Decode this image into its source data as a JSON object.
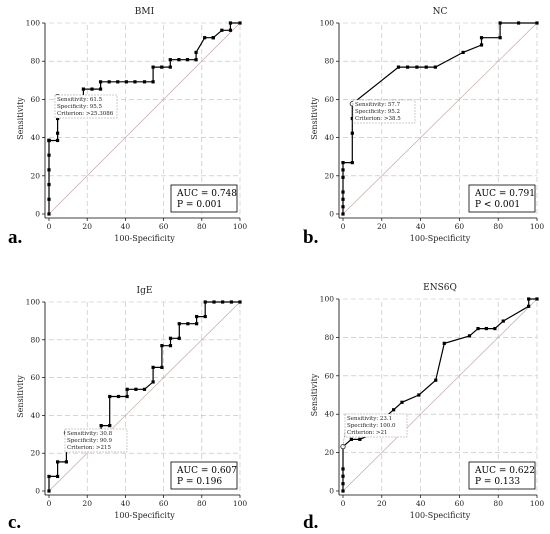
{
  "figure_letters": [
    "a.",
    "b.",
    "c.",
    "d."
  ],
  "colors": {
    "curve": "#000000",
    "diagonal": "#c8a8a8",
    "grid": "#bdbdbd",
    "box": "#000000"
  },
  "chart_data": [
    {
      "type": "line",
      "title": "BMI",
      "xlabel": "100-Specificity",
      "ylabel": "Sensitivity",
      "xlim": [
        0,
        100
      ],
      "ylim": [
        0,
        100
      ],
      "ticks": [
        "0",
        "20",
        "40",
        "60",
        "80",
        "100"
      ],
      "grid": true,
      "auc_text": "AUC = 0.748",
      "p_text": "P = 0.001",
      "annotation": [
        "Sensitivity: 61.5",
        "Specificity: 95.5",
        "Criterion: >25.3086"
      ],
      "criterion_point": [
        4.5,
        61.5
      ],
      "x": [
        0,
        0,
        0,
        0,
        0,
        0,
        0,
        0,
        0,
        4.5,
        4.5,
        4.5,
        4.5,
        9,
        13.5,
        18,
        18,
        22.5,
        27,
        27,
        31.5,
        36,
        40.5,
        45,
        50,
        54.5,
        54.5,
        59,
        63.5,
        63.5,
        68,
        72.5,
        77,
        77,
        81.5,
        86,
        86,
        90.5,
        95,
        95,
        100
      ],
      "y": [
        0,
        7.7,
        15.4,
        23.1,
        30.8,
        38.5,
        38.5,
        38.5,
        38.5,
        38.5,
        42.3,
        50,
        61.5,
        61.5,
        61.5,
        61.5,
        65.4,
        65.4,
        65.4,
        69.2,
        69.2,
        69.2,
        69.2,
        69.2,
        69.2,
        69.2,
        76.9,
        76.9,
        76.9,
        80.8,
        80.8,
        80.8,
        80.8,
        84.6,
        92.3,
        92.3,
        92.3,
        96.2,
        96.2,
        100,
        100
      ]
    },
    {
      "type": "line",
      "title": "NC",
      "xlabel": "100-Specificity",
      "ylabel": "Sensitivity",
      "xlim": [
        0,
        100
      ],
      "ylim": [
        0,
        100
      ],
      "ticks": [
        "0",
        "20",
        "40",
        "60",
        "80",
        "100"
      ],
      "grid": true,
      "auc_text": "AUC = 0.791",
      "p_text": "P < 0.001",
      "annotation": [
        "Sensitivity: 57.7",
        "Specificity: 95.2",
        "Criterion: >38.5"
      ],
      "criterion_point": [
        4.8,
        57.7
      ],
      "x": [
        0,
        0,
        0,
        0,
        0,
        0,
        0,
        4.8,
        4.8,
        4.8,
        4.8,
        28.6,
        33.3,
        38.1,
        42.9,
        47.6,
        61.9,
        71.4,
        71.4,
        81,
        81,
        90.5,
        100
      ],
      "y": [
        0,
        3.8,
        7.7,
        11.5,
        19.2,
        23.1,
        26.9,
        26.9,
        42.3,
        50,
        57.7,
        76.9,
        76.9,
        76.9,
        76.9,
        76.9,
        84.6,
        88.5,
        92.3,
        92.3,
        100,
        100,
        100
      ]
    },
    {
      "type": "line",
      "title": "IgE",
      "xlabel": "100-Specificity",
      "ylabel": "Sensitivity",
      "xlim": [
        0,
        100
      ],
      "ylim": [
        0,
        100
      ],
      "ticks": [
        "0",
        "20",
        "40",
        "60",
        "80",
        "100"
      ],
      "grid": true,
      "auc_text": "AUC = 0.607",
      "p_text": "P = 0.196",
      "annotation": [
        "Sensitivity: 30.8",
        "Specificity: 90.9",
        "Criterion: >215"
      ],
      "criterion_point": [
        9.1,
        30.8
      ],
      "x": [
        0,
        0,
        4.5,
        4.5,
        9.1,
        9.1,
        13.6,
        18.2,
        22.7,
        27.3,
        27.3,
        31.8,
        31.8,
        36.4,
        40.9,
        40.9,
        45.5,
        50,
        54.5,
        54.5,
        59.1,
        59.1,
        63.6,
        63.6,
        68.2,
        68.2,
        72.7,
        77.3,
        77.3,
        81.8,
        81.8,
        86.4,
        90.9,
        95.5,
        100
      ],
      "y": [
        0,
        7.7,
        7.7,
        15.4,
        15.4,
        30.8,
        30.8,
        30.8,
        30.8,
        30.8,
        34.6,
        34.6,
        50,
        50,
        50,
        53.8,
        53.8,
        53.8,
        57.7,
        65.4,
        65.4,
        76.9,
        76.9,
        80.8,
        80.8,
        88.5,
        88.5,
        88.5,
        92.3,
        92.3,
        100,
        100,
        100,
        100,
        100
      ]
    },
    {
      "type": "line",
      "title": "ENS6Q",
      "xlabel": "100-Specificity",
      "ylabel": "Sensitivity",
      "xlim": [
        0,
        100
      ],
      "ylim": [
        0,
        100
      ],
      "ticks": [
        "0",
        "20",
        "40",
        "60",
        "80",
        "100"
      ],
      "grid": true,
      "auc_text": "AUC = 0.622",
      "p_text": "P = 0.133",
      "annotation": [
        "Sensitivity: 23.1",
        "Specificity: 100.0",
        "Criterion: >21"
      ],
      "criterion_point": [
        0,
        23.1
      ],
      "x": [
        0,
        0,
        0,
        0,
        0,
        4.3,
        8.7,
        17.4,
        21.7,
        26.1,
        30.4,
        39.1,
        47.8,
        52.2,
        65.2,
        69.6,
        73.9,
        78.3,
        82.6,
        95.7,
        95.7,
        100
      ],
      "y": [
        0,
        3.8,
        7.7,
        11.5,
        23.1,
        26.9,
        26.9,
        30.8,
        38.5,
        42.3,
        46.2,
        50,
        57.7,
        76.9,
        80.8,
        84.6,
        84.6,
        84.6,
        88.5,
        96.2,
        100,
        100
      ]
    }
  ]
}
